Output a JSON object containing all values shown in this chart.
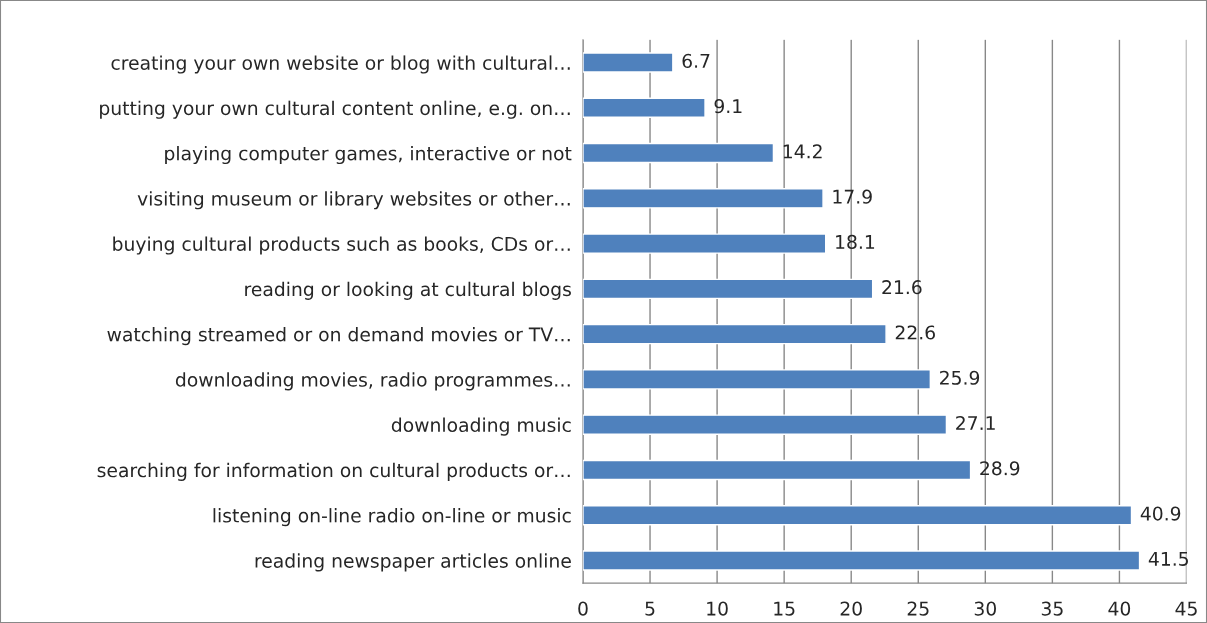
{
  "chart_data": {
    "type": "bar",
    "orientation": "horizontal",
    "categories": [
      "creating your own website or blog with cultural…",
      "putting your own cultural content online, e.g. on…",
      "playing computer games, interactive or not",
      "visiting museum or library websites or other…",
      "buying cultural products such as books, CDs or…",
      "reading or looking at cultural blogs",
      "watching streamed or on demand movies or TV…",
      "downloading movies, radio programmes…",
      "downloading music",
      "searching for information on cultural products or…",
      "listening on-line radio on-line or music",
      "reading newspaper articles online"
    ],
    "values": [
      6.7,
      9.1,
      14.2,
      17.9,
      18.1,
      21.6,
      22.6,
      25.9,
      27.1,
      28.9,
      40.9,
      41.5
    ],
    "color": "#4f81bd",
    "xlim": [
      0,
      45
    ],
    "xticks": [
      0,
      5,
      10,
      15,
      20,
      25,
      30,
      35,
      40,
      45
    ],
    "grid": "x",
    "data_labels": true
  }
}
